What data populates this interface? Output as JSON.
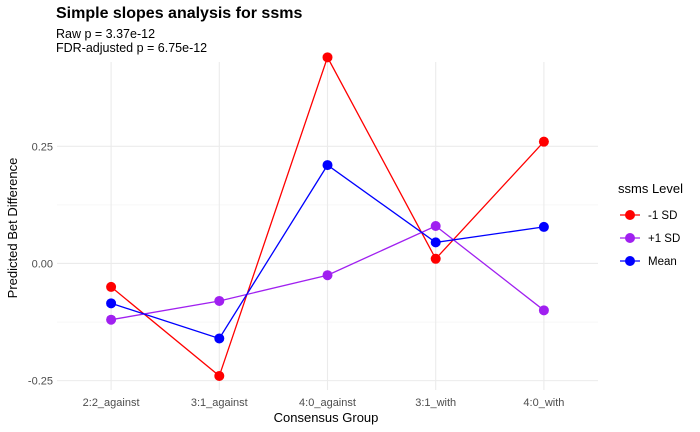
{
  "chart_data": {
    "type": "line",
    "title": "Simple slopes analysis for ssms",
    "subtitle_lines": [
      "Raw p = 3.37e-12",
      "FDR-adjusted p = 6.75e-12"
    ],
    "xlabel": "Consensus Group",
    "ylabel": "Predicted Bet Difference",
    "categories": [
      "2:2_against",
      "3:1_against",
      "4:0_against",
      "3:1_with",
      "4:0_with"
    ],
    "ylim": [
      -0.27,
      0.43
    ],
    "yticks": [
      -0.25,
      0.0,
      0.25
    ],
    "ytick_labels": [
      "-0.25",
      "0.00",
      "0.25"
    ],
    "grid": true,
    "legend": {
      "title": "ssms Level",
      "placement": "right"
    },
    "series": [
      {
        "name": "-1 SD",
        "color": "#ff0000",
        "values": [
          -0.05,
          -0.24,
          0.44,
          0.01,
          0.26
        ]
      },
      {
        "name": "+1 SD",
        "color": "#a020f0",
        "values": [
          -0.12,
          -0.08,
          -0.025,
          0.08,
          -0.1
        ]
      },
      {
        "name": "Mean",
        "color": "#0000ff",
        "values": [
          -0.085,
          -0.16,
          0.21,
          0.045,
          0.078
        ]
      }
    ]
  }
}
